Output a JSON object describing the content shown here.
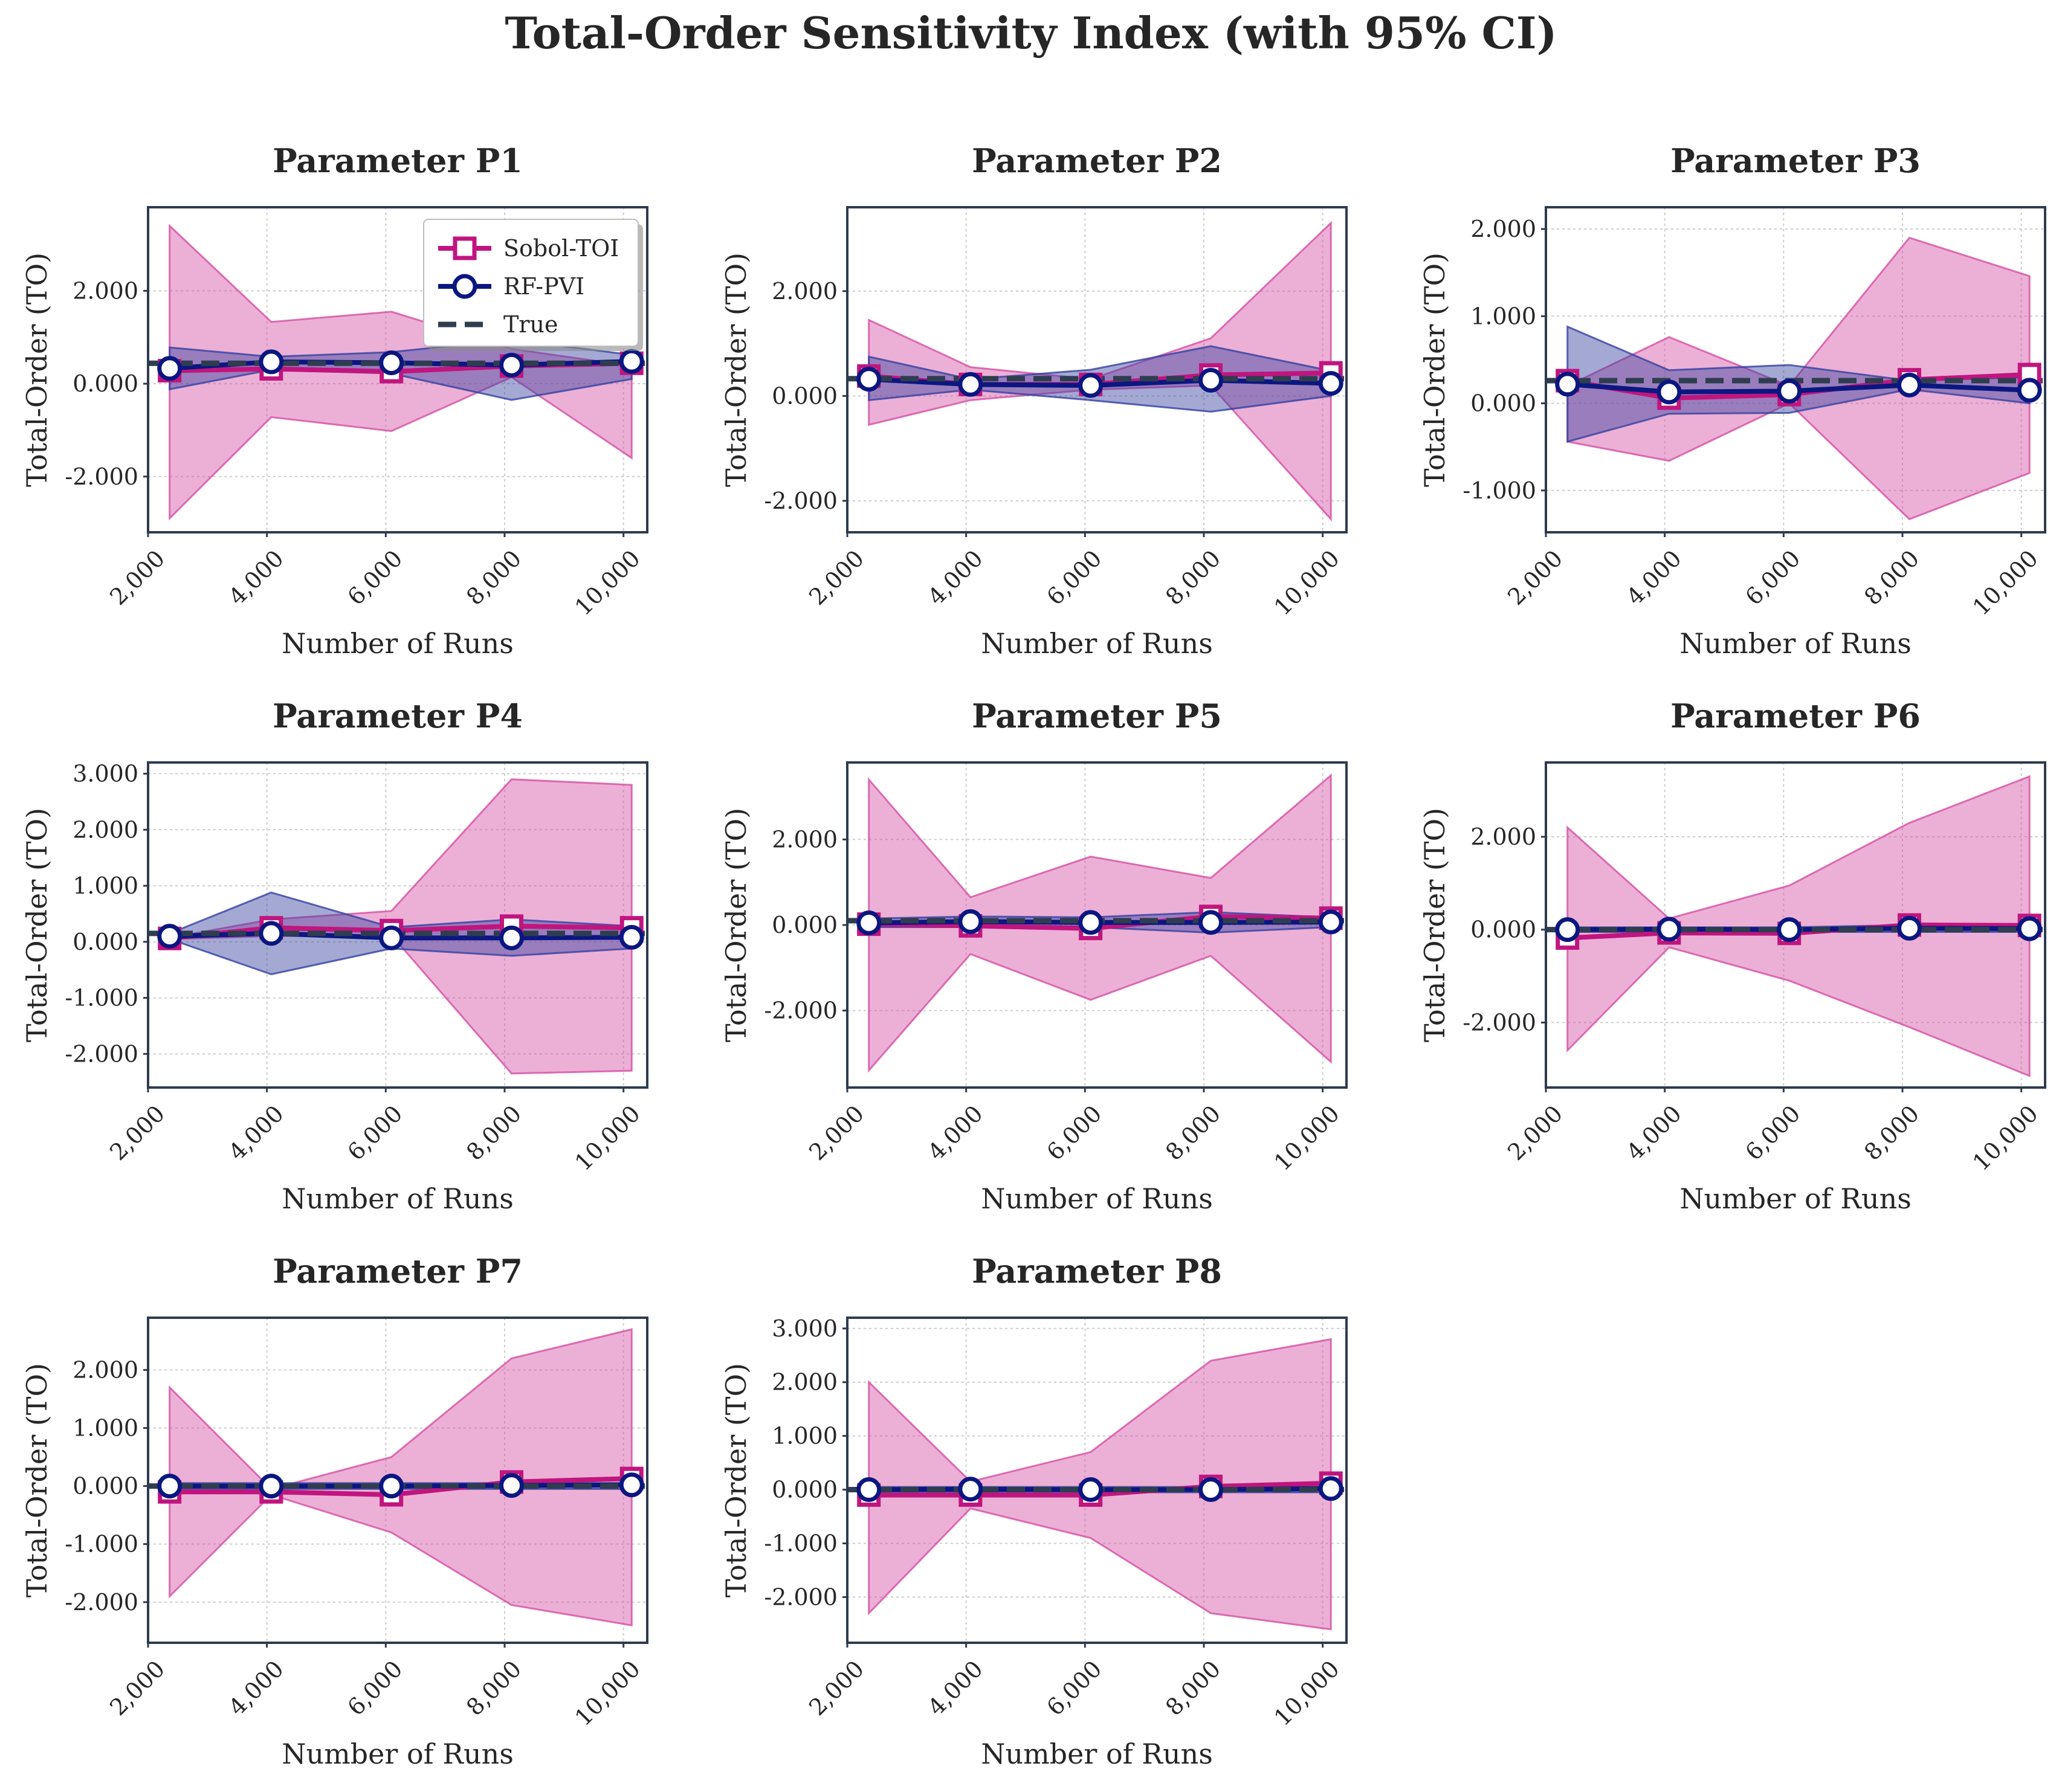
{
  "figure": {
    "title": "Total-Order Sensitivity Index (with 95% CI)"
  },
  "legend": {
    "placement": "upper-right of first panel",
    "items": [
      {
        "key": "sobol",
        "label": "Sobol-TOI"
      },
      {
        "key": "rf",
        "label": "RF-PVI"
      },
      {
        "key": "true",
        "label": "True"
      }
    ]
  },
  "styles": {
    "sobol": {
      "color": "#c0157f",
      "band_color": "#d54fa4",
      "marker": "square"
    },
    "rf": {
      "color": "#0b1780",
      "band_color": "#3540a0",
      "marker": "circle"
    },
    "true": {
      "color": "#2f3d50",
      "dash": "dashed"
    }
  },
  "chart_data": [
    {
      "type": "line",
      "title": "Parameter P1",
      "xlabel": "Number of Runs",
      "ylabel": "Total-Order (TO)",
      "x": [
        2363,
        4073,
        6095,
        8117,
        10138
      ],
      "xlim": [
        2000,
        10400
      ],
      "ylim": [
        -3.2,
        3.8
      ],
      "xticks": [
        {
          "v": 2000,
          "label": "2,000"
        },
        {
          "v": 4000,
          "label": "4,000"
        },
        {
          "v": 6000,
          "label": "6,000"
        },
        {
          "v": 8000,
          "label": "8,000"
        },
        {
          "v": 10000,
          "label": "10,000"
        }
      ],
      "yticks": [
        {
          "v": -2,
          "label": "-2.000"
        },
        {
          "v": 0,
          "label": "0.000"
        },
        {
          "v": 2,
          "label": "2.000"
        }
      ],
      "grid": true,
      "legend": true,
      "series": [
        {
          "name": "Sobol-TOI",
          "key": "sobol",
          "values": [
            0.28,
            0.32,
            0.26,
            0.38,
            0.44
          ],
          "lower": [
            -2.9,
            -0.72,
            -1.02,
            0.14,
            -1.6
          ],
          "upper": [
            3.4,
            1.33,
            1.55,
            0.75,
            0.38
          ]
        },
        {
          "name": "RF-PVI",
          "key": "rf",
          "values": [
            0.33,
            0.47,
            0.45,
            0.4,
            0.48
          ],
          "lower": [
            -0.12,
            0.3,
            0.22,
            -0.35,
            0.1
          ],
          "upper": [
            0.78,
            0.58,
            0.68,
            0.95,
            0.62
          ]
        },
        {
          "name": "True",
          "key": "true",
          "values": [
            0.44,
            0.44,
            0.44,
            0.44,
            0.44
          ]
        }
      ]
    },
    {
      "type": "line",
      "title": "Parameter P2",
      "xlabel": "Number of Runs",
      "ylabel": "Total-Order (TO)",
      "x": [
        2363,
        4073,
        6095,
        8117,
        10138
      ],
      "xlim": [
        2000,
        10400
      ],
      "ylim": [
        -2.6,
        3.6
      ],
      "xticks": [
        {
          "v": 2000,
          "label": "2,000"
        },
        {
          "v": 4000,
          "label": "4,000"
        },
        {
          "v": 6000,
          "label": "6,000"
        },
        {
          "v": 8000,
          "label": "8,000"
        },
        {
          "v": 10000,
          "label": "10,000"
        }
      ],
      "yticks": [
        {
          "v": -2,
          "label": "-2.000"
        },
        {
          "v": 0,
          "label": "0.000"
        },
        {
          "v": 2,
          "label": "2.000"
        }
      ],
      "grid": true,
      "legend": false,
      "series": [
        {
          "name": "Sobol-TOI",
          "key": "sobol",
          "values": [
            0.38,
            0.22,
            0.22,
            0.4,
            0.44
          ],
          "lower": [
            -0.55,
            -0.08,
            0.12,
            0.2,
            -2.35
          ],
          "upper": [
            1.45,
            0.55,
            0.32,
            1.1,
            3.3
          ]
        },
        {
          "name": "RF-PVI",
          "key": "rf",
          "values": [
            0.32,
            0.22,
            0.2,
            0.3,
            0.24
          ],
          "lower": [
            -0.08,
            0.12,
            -0.08,
            -0.3,
            0.0
          ],
          "upper": [
            0.75,
            0.32,
            0.5,
            0.95,
            0.48
          ]
        },
        {
          "name": "True",
          "key": "true",
          "values": [
            0.33,
            0.33,
            0.33,
            0.33,
            0.33
          ]
        }
      ]
    },
    {
      "type": "line",
      "title": "Parameter P3",
      "xlabel": "Number of Runs",
      "ylabel": "Total-Order (TO)",
      "x": [
        2363,
        4073,
        6095,
        8117,
        10138
      ],
      "xlim": [
        2000,
        10400
      ],
      "ylim": [
        -1.48,
        2.25
      ],
      "xticks": [
        {
          "v": 2000,
          "label": "2,000"
        },
        {
          "v": 4000,
          "label": "4,000"
        },
        {
          "v": 6000,
          "label": "6,000"
        },
        {
          "v": 8000,
          "label": "8,000"
        },
        {
          "v": 10000,
          "label": "10,000"
        }
      ],
      "yticks": [
        {
          "v": -1,
          "label": "-1.000"
        },
        {
          "v": 0,
          "label": "0.000"
        },
        {
          "v": 1,
          "label": "1.000"
        },
        {
          "v": 2,
          "label": "2.000"
        }
      ],
      "grid": true,
      "legend": false,
      "series": [
        {
          "name": "Sobol-TOI",
          "key": "sobol",
          "values": [
            0.26,
            0.06,
            0.1,
            0.27,
            0.33
          ],
          "lower": [
            -0.44,
            -0.66,
            0.0,
            -1.33,
            -0.8
          ],
          "upper": [
            0.2,
            0.76,
            0.2,
            1.9,
            1.46
          ]
        },
        {
          "name": "RF-PVI",
          "key": "rf",
          "values": [
            0.22,
            0.13,
            0.14,
            0.21,
            0.15
          ],
          "lower": [
            -0.44,
            -0.12,
            -0.11,
            0.16,
            0.0
          ],
          "upper": [
            0.88,
            0.38,
            0.44,
            0.26,
            0.3
          ]
        },
        {
          "name": "True",
          "key": "true",
          "values": [
            0.26,
            0.26,
            0.26,
            0.26,
            0.26
          ]
        }
      ]
    },
    {
      "type": "line",
      "title": "Parameter P4",
      "xlabel": "Number of Runs",
      "ylabel": "Total-Order (TO)",
      "x": [
        2363,
        4073,
        6095,
        8117,
        10138
      ],
      "xlim": [
        2000,
        10400
      ],
      "ylim": [
        -2.6,
        3.2
      ],
      "xticks": [
        {
          "v": 2000,
          "label": "2,000"
        },
        {
          "v": 4000,
          "label": "4,000"
        },
        {
          "v": 6000,
          "label": "6,000"
        },
        {
          "v": 8000,
          "label": "8,000"
        },
        {
          "v": 10000,
          "label": "10,000"
        }
      ],
      "yticks": [
        {
          "v": -2,
          "label": "-2.000"
        },
        {
          "v": -1,
          "label": "-1.000"
        },
        {
          "v": 0,
          "label": "0.000"
        },
        {
          "v": 1,
          "label": "1.000"
        },
        {
          "v": 2,
          "label": "2.000"
        },
        {
          "v": 3,
          "label": "3.000"
        }
      ],
      "grid": true,
      "legend": false,
      "series": [
        {
          "name": "Sobol-TOI",
          "key": "sobol",
          "values": [
            0.06,
            0.25,
            0.2,
            0.28,
            0.25
          ],
          "lower": [
            0.05,
            0.1,
            0.12,
            -2.35,
            -2.3
          ],
          "upper": [
            0.07,
            0.4,
            0.55,
            2.9,
            2.8
          ]
        },
        {
          "name": "RF-PVI",
          "key": "rf",
          "values": [
            0.1,
            0.15,
            0.07,
            0.07,
            0.08
          ],
          "lower": [
            0.05,
            -0.58,
            -0.12,
            -0.25,
            -0.12
          ],
          "upper": [
            0.15,
            0.88,
            0.26,
            0.4,
            0.28
          ]
        },
        {
          "name": "True",
          "key": "true",
          "values": [
            0.15,
            0.15,
            0.15,
            0.15,
            0.15
          ]
        }
      ]
    },
    {
      "type": "line",
      "title": "Parameter P5",
      "xlabel": "Number of Runs",
      "ylabel": "Total-Order (TO)",
      "x": [
        2363,
        4073,
        6095,
        8117,
        10138
      ],
      "xlim": [
        2000,
        10400
      ],
      "ylim": [
        -3.8,
        3.8
      ],
      "xticks": [
        {
          "v": 2000,
          "label": "2,000"
        },
        {
          "v": 4000,
          "label": "4,000"
        },
        {
          "v": 6000,
          "label": "6,000"
        },
        {
          "v": 8000,
          "label": "8,000"
        },
        {
          "v": 10000,
          "label": "10,000"
        }
      ],
      "yticks": [
        {
          "v": -2,
          "label": "-2.000"
        },
        {
          "v": 0,
          "label": "0.000"
        },
        {
          "v": 2,
          "label": "2.000"
        }
      ],
      "grid": true,
      "legend": false,
      "series": [
        {
          "name": "Sobol-TOI",
          "key": "sobol",
          "values": [
            0.02,
            -0.02,
            -0.08,
            0.2,
            0.16
          ],
          "lower": [
            -3.4,
            -0.68,
            -1.75,
            -0.72,
            -3.2
          ],
          "upper": [
            3.4,
            0.65,
            1.6,
            1.1,
            3.5
          ]
        },
        {
          "name": "RF-PVI",
          "key": "rf",
          "values": [
            0.05,
            0.08,
            0.06,
            0.06,
            0.07
          ],
          "lower": [
            -0.05,
            -0.05,
            -0.05,
            -0.18,
            -0.05
          ],
          "upper": [
            0.15,
            0.2,
            0.18,
            0.3,
            0.18
          ]
        },
        {
          "name": "True",
          "key": "true",
          "values": [
            0.1,
            0.1,
            0.1,
            0.1,
            0.1
          ]
        }
      ]
    },
    {
      "type": "line",
      "title": "Parameter P6",
      "xlabel": "Number of Runs",
      "ylabel": "Total-Order (TO)",
      "x": [
        2363,
        4073,
        6095,
        8117,
        10138
      ],
      "xlim": [
        2000,
        10400
      ],
      "ylim": [
        -3.4,
        3.6
      ],
      "xticks": [
        {
          "v": 2000,
          "label": "2,000"
        },
        {
          "v": 4000,
          "label": "4,000"
        },
        {
          "v": 6000,
          "label": "6,000"
        },
        {
          "v": 8000,
          "label": "8,000"
        },
        {
          "v": 10000,
          "label": "10,000"
        }
      ],
      "yticks": [
        {
          "v": -2,
          "label": "-2.000"
        },
        {
          "v": 0,
          "label": "0.000"
        },
        {
          "v": 2,
          "label": "2.000"
        }
      ],
      "grid": true,
      "legend": false,
      "series": [
        {
          "name": "Sobol-TOI",
          "key": "sobol",
          "values": [
            -0.18,
            -0.07,
            -0.08,
            0.1,
            0.09
          ],
          "lower": [
            -2.6,
            -0.38,
            -1.1,
            -2.1,
            -3.15
          ],
          "upper": [
            2.2,
            0.24,
            0.95,
            2.3,
            3.3
          ]
        },
        {
          "name": "RF-PVI",
          "key": "rf",
          "values": [
            0.0,
            0.01,
            0.0,
            0.03,
            0.02
          ],
          "lower": [
            -0.05,
            -0.05,
            -0.05,
            -0.05,
            -0.05
          ],
          "upper": [
            0.05,
            0.05,
            0.05,
            0.1,
            0.08
          ]
        },
        {
          "name": "True",
          "key": "true",
          "values": [
            0.0,
            0.0,
            0.0,
            0.0,
            0.0
          ]
        }
      ]
    },
    {
      "type": "line",
      "title": "Parameter P7",
      "xlabel": "Number of Runs",
      "ylabel": "Total-Order (TO)",
      "x": [
        2363,
        4073,
        6095,
        8117,
        10138
      ],
      "xlim": [
        2000,
        10400
      ],
      "ylim": [
        -2.7,
        2.9
      ],
      "xticks": [
        {
          "v": 2000,
          "label": "2,000"
        },
        {
          "v": 4000,
          "label": "4,000"
        },
        {
          "v": 6000,
          "label": "6,000"
        },
        {
          "v": 8000,
          "label": "8,000"
        },
        {
          "v": 10000,
          "label": "10,000"
        }
      ],
      "yticks": [
        {
          "v": -2,
          "label": "-2.000"
        },
        {
          "v": -1,
          "label": "-1.000"
        },
        {
          "v": 0,
          "label": "0.000"
        },
        {
          "v": 1,
          "label": "1.000"
        },
        {
          "v": 2,
          "label": "2.000"
        }
      ],
      "grid": true,
      "legend": false,
      "series": [
        {
          "name": "Sobol-TOI",
          "key": "sobol",
          "values": [
            -0.1,
            -0.1,
            -0.15,
            0.07,
            0.13
          ],
          "lower": [
            -1.9,
            -0.15,
            -0.8,
            -2.05,
            -2.4
          ],
          "upper": [
            1.7,
            -0.05,
            0.5,
            2.2,
            2.7
          ]
        },
        {
          "name": "RF-PVI",
          "key": "rf",
          "values": [
            0.0,
            0.0,
            0.0,
            0.01,
            0.02
          ],
          "lower": [
            -0.05,
            -0.05,
            -0.05,
            -0.05,
            -0.05
          ],
          "upper": [
            0.05,
            0.05,
            0.05,
            0.05,
            0.05
          ]
        },
        {
          "name": "True",
          "key": "true",
          "values": [
            0.0,
            0.0,
            0.0,
            0.0,
            0.0
          ]
        }
      ]
    },
    {
      "type": "line",
      "title": "Parameter P8",
      "xlabel": "Number of Runs",
      "ylabel": "Total-Order (TO)",
      "x": [
        2363,
        4073,
        6095,
        8117,
        10138
      ],
      "xlim": [
        2000,
        10400
      ],
      "ylim": [
        -2.85,
        3.2
      ],
      "xticks": [
        {
          "v": 2000,
          "label": "2,000"
        },
        {
          "v": 4000,
          "label": "4,000"
        },
        {
          "v": 6000,
          "label": "6,000"
        },
        {
          "v": 8000,
          "label": "8,000"
        },
        {
          "v": 10000,
          "label": "10,000"
        }
      ],
      "yticks": [
        {
          "v": -2,
          "label": "-2.000"
        },
        {
          "v": -1,
          "label": "-1.000"
        },
        {
          "v": 0,
          "label": "0.000"
        },
        {
          "v": 1,
          "label": "1.000"
        },
        {
          "v": 2,
          "label": "2.000"
        },
        {
          "v": 3,
          "label": "3.000"
        }
      ],
      "grid": true,
      "legend": false,
      "series": [
        {
          "name": "Sobol-TOI",
          "key": "sobol",
          "values": [
            -0.1,
            -0.1,
            -0.1,
            0.06,
            0.12
          ],
          "lower": [
            -2.3,
            -0.35,
            -0.9,
            -2.3,
            -2.6
          ],
          "upper": [
            2.0,
            0.15,
            0.7,
            2.4,
            2.8
          ]
        },
        {
          "name": "RF-PVI",
          "key": "rf",
          "values": [
            0.0,
            0.01,
            0.0,
            0.0,
            0.02
          ],
          "lower": [
            -0.05,
            -0.05,
            -0.05,
            -0.05,
            -0.05
          ],
          "upper": [
            0.05,
            0.05,
            0.05,
            0.05,
            0.05
          ]
        },
        {
          "name": "True",
          "key": "true",
          "values": [
            0.0,
            0.0,
            0.0,
            0.0,
            0.0
          ]
        }
      ]
    }
  ]
}
